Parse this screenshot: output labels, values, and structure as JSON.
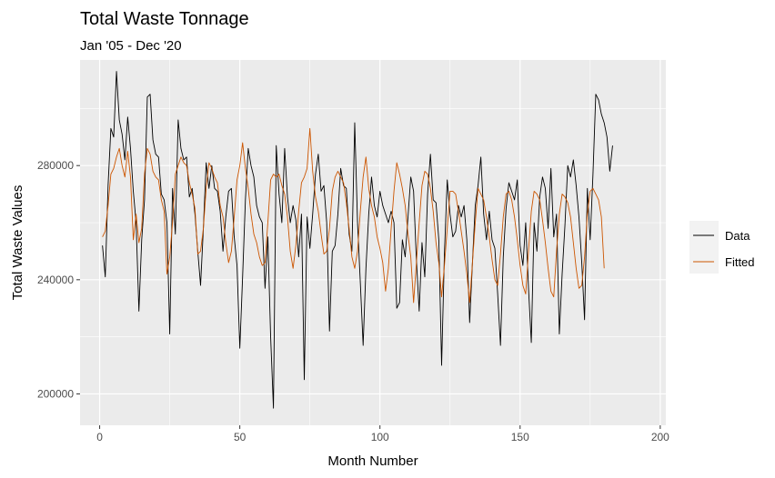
{
  "chart_data": {
    "type": "line",
    "title": "Total Waste Tonnage",
    "subtitle": "Jan '05 - Dec '20",
    "xlabel": "Month Number",
    "ylabel": "Total Waste Values",
    "xlim": [
      -7,
      202
    ],
    "ylim": [
      189000,
      317000
    ],
    "x_ticks": [
      0,
      50,
      100,
      150,
      200
    ],
    "y_ticks": [
      200000,
      240000,
      280000
    ],
    "grid": true,
    "legend_position": "right",
    "x_start": 1,
    "series": [
      {
        "name": "Data",
        "color": "#000000",
        "values": [
          252000,
          241000,
          273000,
          293000,
          290000,
          313000,
          296000,
          291000,
          282000,
          297000,
          286000,
          271000,
          260000,
          229000,
          254000,
          268000,
          304000,
          305000,
          289000,
          284000,
          283000,
          270000,
          268000,
          260000,
          221000,
          272000,
          256000,
          296000,
          286000,
          282000,
          283000,
          269000,
          272000,
          263000,
          250000,
          238000,
          258000,
          281000,
          272000,
          280000,
          272000,
          271000,
          264000,
          250000,
          262000,
          271000,
          272000,
          255000,
          245000,
          216000,
          241000,
          268000,
          286000,
          280000,
          276000,
          266000,
          262000,
          260000,
          237000,
          255000,
          220000,
          195000,
          287000,
          270000,
          260000,
          286000,
          269000,
          260000,
          266000,
          261000,
          248000,
          263000,
          205000,
          262000,
          251000,
          263000,
          277000,
          284000,
          271000,
          273000,
          260000,
          222000,
          250000,
          252000,
          263000,
          279000,
          273000,
          272000,
          256000,
          250000,
          295000,
          260000,
          239000,
          217000,
          244000,
          263000,
          276000,
          266000,
          262000,
          271000,
          266000,
          263000,
          260000,
          264000,
          260000,
          230000,
          232000,
          254000,
          248000,
          262000,
          276000,
          271000,
          247000,
          229000,
          253000,
          241000,
          270000,
          284000,
          268000,
          267000,
          254000,
          210000,
          249000,
          275000,
          263000,
          255000,
          257000,
          266000,
          262000,
          266000,
          254000,
          225000,
          246000,
          266000,
          273000,
          283000,
          263000,
          254000,
          264000,
          254000,
          251000,
          235000,
          217000,
          248000,
          265000,
          274000,
          271000,
          268000,
          275000,
          252000,
          245000,
          260000,
          237000,
          218000,
          260000,
          250000,
          269000,
          276000,
          272000,
          258000,
          279000,
          255000,
          263000,
          221000,
          242000,
          259000,
          280000,
          276000,
          282000,
          273000,
          262000,
          246000,
          226000,
          272000,
          254000,
          277000,
          305000,
          303000,
          298000,
          295000,
          290000,
          278000,
          287000
        ]
      },
      {
        "name": "Fitted",
        "color": "#cc5500",
        "values": [
          255000,
          257000,
          266000,
          277000,
          279000,
          283000,
          286000,
          280000,
          276000,
          285000,
          276000,
          254000,
          263000,
          253000,
          258000,
          277000,
          286000,
          284000,
          278000,
          276000,
          275000,
          268000,
          264000,
          242000,
          248000,
          260000,
          277000,
          280000,
          283000,
          281000,
          280000,
          274000,
          270000,
          265000,
          249000,
          250000,
          258000,
          272000,
          281000,
          279000,
          276000,
          274000,
          266000,
          262000,
          253000,
          246000,
          250000,
          262000,
          275000,
          280000,
          288000,
          279000,
          272000,
          263000,
          256000,
          253000,
          248000,
          245000,
          246000,
          260000,
          275000,
          277000,
          276000,
          277000,
          273000,
          270000,
          262000,
          250000,
          244000,
          252000,
          264000,
          274000,
          276000,
          279000,
          293000,
          278000,
          269000,
          264000,
          256000,
          249000,
          250000,
          258000,
          271000,
          276000,
          278000,
          276000,
          274000,
          267000,
          258000,
          248000,
          244000,
          250000,
          264000,
          276000,
          283000,
          272000,
          266000,
          262000,
          255000,
          251000,
          246000,
          236000,
          244000,
          258000,
          271000,
          281000,
          277000,
          272000,
          266000,
          256000,
          248000,
          232000,
          246000,
          260000,
          273000,
          278000,
          277000,
          272000,
          264000,
          253000,
          246000,
          234000,
          245000,
          258000,
          271000,
          271000,
          270000,
          264000,
          257000,
          250000,
          242000,
          232000,
          246000,
          260000,
          272000,
          270000,
          268000,
          262000,
          255000,
          247000,
          240000,
          238000,
          249000,
          262000,
          270000,
          271000,
          268000,
          262000,
          254000,
          245000,
          238000,
          235000,
          250000,
          264000,
          271000,
          270000,
          268000,
          261000,
          253000,
          244000,
          236000,
          234000,
          250000,
          263000,
          270000,
          269000,
          267000,
          262000,
          253000,
          244000,
          237000,
          238000,
          248000,
          263000,
          271000,
          272000,
          270000,
          268000,
          262000,
          244000
        ]
      }
    ]
  }
}
